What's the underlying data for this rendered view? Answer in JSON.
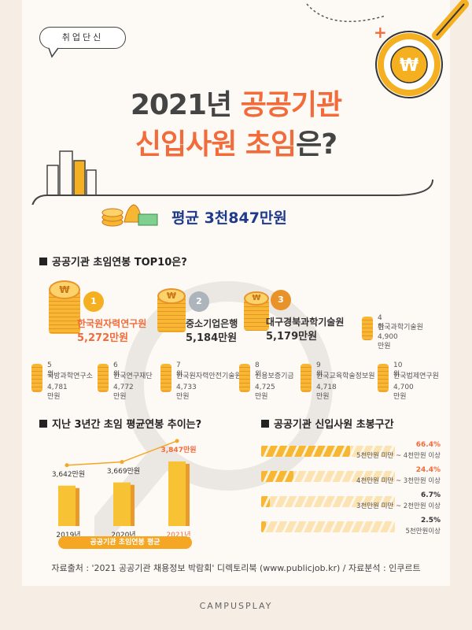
{
  "tag": "취업단신",
  "title": {
    "line1_prefix": "2021년 ",
    "line1_highlight": "공공기관",
    "line2_highlight": "신입사원 초임",
    "line2_suffix": "은?"
  },
  "average_label": "평균 3천847만원",
  "coin_symbol": "₩",
  "colors": {
    "accent": "#f26b3a",
    "coin": "#f7b733",
    "navy": "#1f3a8a",
    "bg": "#f6ede4"
  },
  "top10": {
    "heading": "공공기관 초임연봉 TOP10은?",
    "big": [
      {
        "rank": "1",
        "name": "한국원자력연구원",
        "value": "5,272만원"
      },
      {
        "rank": "2",
        "name": "중소기업은행",
        "value": "5,184만원"
      },
      {
        "rank": "3",
        "name": "대구경북과학기술원",
        "value": "5,179만원"
      }
    ],
    "small": [
      {
        "rank": "4위",
        "name": "한국과학기술원",
        "value": "4,900만원"
      },
      {
        "rank": "5위",
        "name": "국방과학연구소",
        "value": "4,781만원"
      },
      {
        "rank": "6위",
        "name": "한국연구재단",
        "value": "4,772만원"
      },
      {
        "rank": "7위",
        "name": "한국원자력안전기술원",
        "value": "4,733만원"
      },
      {
        "rank": "8위",
        "name": "신용보증기금",
        "value": "4,725만원"
      },
      {
        "rank": "9위",
        "name": "한국교육학술정보원",
        "value": "4,718만원"
      },
      {
        "rank": "10위",
        "name": "한국법제연구원",
        "value": "4,700만원"
      }
    ]
  },
  "chart_data": [
    {
      "type": "bar",
      "title": "지난 3년간 초임 평균연봉 추이는?",
      "categories": [
        "2019년",
        "2020년",
        "2021년"
      ],
      "values": [
        3642,
        3669,
        3847
      ],
      "value_labels": [
        "3,642만원",
        "3,669만원",
        "3,847만원"
      ],
      "xlabel": "공공기관 초임연봉 평균",
      "ylabel": ""
    },
    {
      "type": "bar",
      "title": "공공기관 신입사원 초봉구간",
      "categories": [
        "5천만원 미만 ~ 4천만원 이상",
        "4천만원 미만 ~ 3천만원 이상",
        "3천만원 미만 ~ 2천만원 이상",
        "5천만원이상"
      ],
      "values": [
        66.4,
        24.4,
        6.7,
        2.5
      ],
      "value_labels": [
        "66.4%",
        "24.4%",
        "6.7%",
        "2.5%"
      ],
      "xlim": [
        0,
        100
      ]
    }
  ],
  "source": "자료출처 : '2021 공공기관 채용정보 박람회' 디렉토리북 (www.publicjob.kr) / 자료분석 : 인쿠르트",
  "footer": "CAMPUSPLAY"
}
